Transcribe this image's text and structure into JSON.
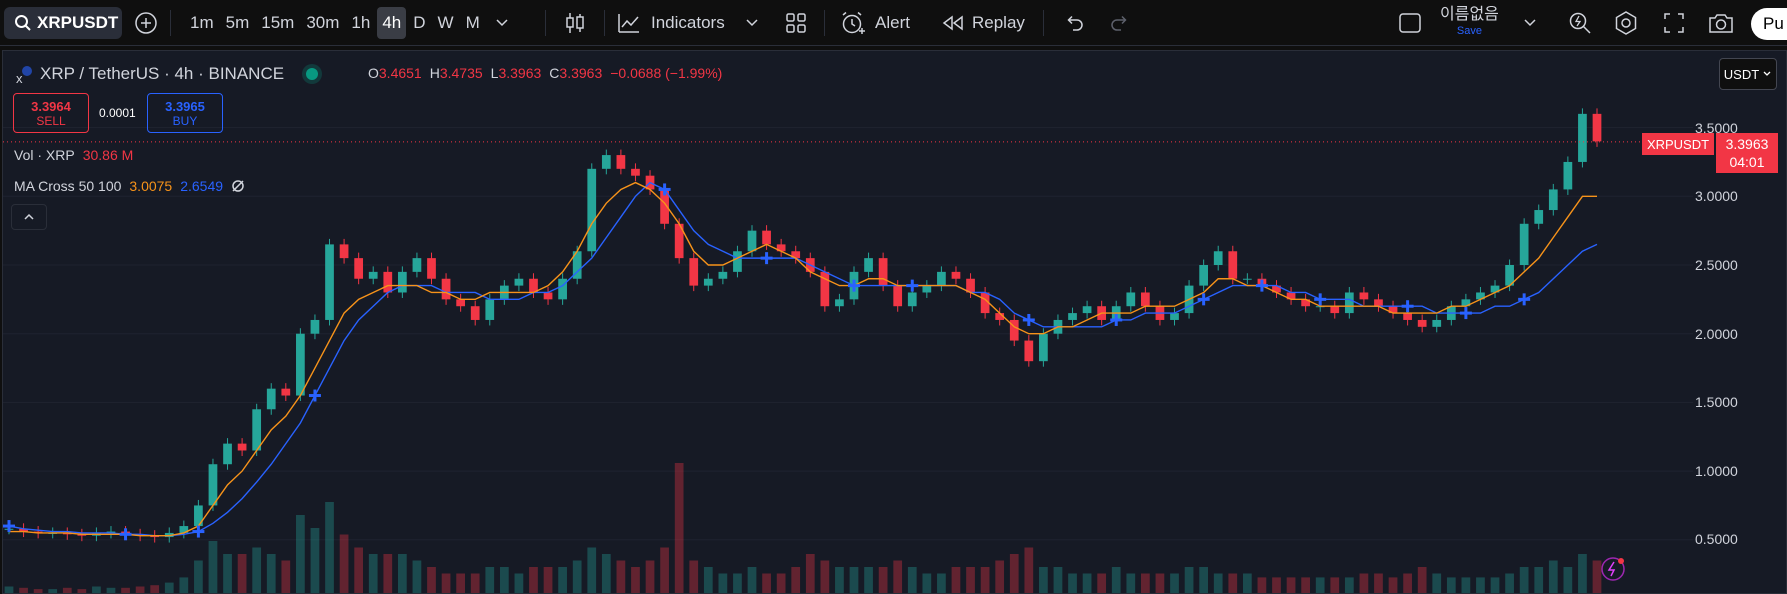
{
  "toolbar": {
    "symbol": "XRPUSDT",
    "timeframes": [
      "1m",
      "5m",
      "15m",
      "30m",
      "1h",
      "4h",
      "D",
      "W",
      "M"
    ],
    "active_timeframe": "4h",
    "indicators_label": "Indicators",
    "alert_label": "Alert",
    "replay_label": "Replay",
    "layout_name": "이름없음",
    "save_label": "Save",
    "publish_label": "Pu"
  },
  "legend": {
    "title": "XRP / TetherUS · 4h · BINANCE",
    "open_key": "O",
    "open": "3.4651",
    "high_key": "H",
    "high": "3.4735",
    "low_key": "L",
    "low": "3.3963",
    "close_key": "C",
    "close": "3.3963",
    "change": "−0.0688 (−1.99%)"
  },
  "trade": {
    "sell_price": "3.3964",
    "sell_label": "SELL",
    "spread": "0.0001",
    "buy_price": "3.3965",
    "buy_label": "BUY"
  },
  "indicators": {
    "vol_label": "Vol · XRP",
    "vol_value": "30.86 M",
    "ma_label": "MA Cross 50 100",
    "ma_fast": "3.0075",
    "ma_slow": "2.6549"
  },
  "currency": "USDT",
  "price_scale": [
    "3.5000",
    "3.0000",
    "2.5000",
    "2.0000",
    "1.5000",
    "1.0000",
    "0.5000"
  ],
  "last_price": {
    "symbol": "XRPUSDT",
    "price": "3.3963",
    "countdown": "04:01"
  },
  "colors": {
    "up": "#26a69a",
    "down": "#f23645",
    "ma_fast": "#f7931a",
    "ma_slow": "#2962ff",
    "cross": "#2962ff",
    "bg": "#161a25"
  },
  "chart_data": {
    "type": "line",
    "title": "XRP / TetherUS · 4h · BINANCE",
    "ylim": [
      0.3,
      3.7
    ],
    "series": [
      {
        "name": "XRP",
        "values": [
          0.58,
          0.56,
          0.55,
          0.55,
          0.54,
          0.53,
          0.55,
          0.56,
          0.54,
          0.53,
          0.52,
          0.55,
          0.6,
          0.75,
          1.05,
          1.2,
          1.15,
          1.45,
          1.6,
          1.55,
          2.0,
          2.1,
          2.65,
          2.55,
          2.4,
          2.45,
          2.3,
          2.45,
          2.55,
          2.4,
          2.25,
          2.2,
          2.1,
          2.25,
          2.35,
          2.4,
          2.3,
          2.25,
          2.4,
          2.6,
          3.2,
          3.3,
          3.2,
          3.15,
          3.05,
          2.8,
          2.55,
          2.35,
          2.4,
          2.45,
          2.6,
          2.75,
          2.65,
          2.6,
          2.55,
          2.45,
          2.2,
          2.25,
          2.45,
          2.55,
          2.35,
          2.2,
          2.3,
          2.35,
          2.45,
          2.4,
          2.3,
          2.15,
          2.1,
          1.95,
          1.8,
          2.0,
          2.1,
          2.15,
          2.2,
          2.1,
          2.2,
          2.3,
          2.2,
          2.1,
          2.15,
          2.35,
          2.5,
          2.6,
          2.4,
          2.4,
          2.35,
          2.3,
          2.25,
          2.2,
          2.2,
          2.15,
          2.3,
          2.25,
          2.2,
          2.15,
          2.1,
          2.05,
          2.1,
          2.2,
          2.25,
          2.3,
          2.35,
          2.5,
          2.8,
          2.9,
          3.05,
          3.25,
          3.6,
          3.4
        ]
      },
      {
        "name": "MA 50",
        "values": [
          0.56,
          0.56,
          0.55,
          0.55,
          0.55,
          0.54,
          0.54,
          0.54,
          0.54,
          0.53,
          0.53,
          0.53,
          0.55,
          0.6,
          0.75,
          0.9,
          1.0,
          1.15,
          1.3,
          1.4,
          1.55,
          1.75,
          1.95,
          2.15,
          2.25,
          2.3,
          2.35,
          2.35,
          2.35,
          2.3,
          2.3,
          2.25,
          2.25,
          2.3,
          2.3,
          2.3,
          2.3,
          2.35,
          2.45,
          2.6,
          2.8,
          2.95,
          3.05,
          3.1,
          3.05,
          2.95,
          2.8,
          2.6,
          2.5,
          2.5,
          2.55,
          2.6,
          2.65,
          2.6,
          2.55,
          2.45,
          2.4,
          2.35,
          2.35,
          2.4,
          2.4,
          2.35,
          2.35,
          2.35,
          2.35,
          2.35,
          2.3,
          2.25,
          2.15,
          2.05,
          2.0,
          2.0,
          2.05,
          2.05,
          2.1,
          2.15,
          2.15,
          2.15,
          2.2,
          2.2,
          2.2,
          2.25,
          2.3,
          2.4,
          2.4,
          2.35,
          2.35,
          2.3,
          2.25,
          2.25,
          2.2,
          2.2,
          2.2,
          2.2,
          2.2,
          2.15,
          2.15,
          2.15,
          2.15,
          2.2,
          2.2,
          2.25,
          2.3,
          2.35,
          2.45,
          2.55,
          2.7,
          2.85,
          3.0,
          3.0
        ]
      },
      {
        "name": "MA 100",
        "values": [
          0.6,
          0.58,
          0.57,
          0.56,
          0.56,
          0.55,
          0.55,
          0.55,
          0.54,
          0.54,
          0.53,
          0.53,
          0.54,
          0.56,
          0.62,
          0.7,
          0.8,
          0.92,
          1.05,
          1.2,
          1.35,
          1.55,
          1.75,
          1.95,
          2.1,
          2.2,
          2.3,
          2.35,
          2.35,
          2.35,
          2.3,
          2.3,
          2.3,
          2.25,
          2.25,
          2.25,
          2.3,
          2.3,
          2.35,
          2.45,
          2.55,
          2.7,
          2.85,
          3.0,
          3.1,
          3.05,
          2.9,
          2.75,
          2.65,
          2.6,
          2.55,
          2.55,
          2.55,
          2.55,
          2.55,
          2.5,
          2.45,
          2.4,
          2.35,
          2.35,
          2.35,
          2.35,
          2.35,
          2.35,
          2.35,
          2.35,
          2.3,
          2.3,
          2.25,
          2.15,
          2.1,
          2.05,
          2.05,
          2.05,
          2.05,
          2.05,
          2.1,
          2.1,
          2.15,
          2.15,
          2.15,
          2.2,
          2.25,
          2.3,
          2.35,
          2.35,
          2.35,
          2.35,
          2.3,
          2.3,
          2.25,
          2.25,
          2.25,
          2.2,
          2.2,
          2.2,
          2.2,
          2.2,
          2.15,
          2.15,
          2.15,
          2.15,
          2.2,
          2.2,
          2.25,
          2.3,
          2.4,
          2.5,
          2.6,
          2.65
        ]
      }
    ],
    "cross_indices": [
      0,
      8,
      13,
      21,
      45,
      52,
      58,
      62,
      70,
      76,
      82,
      86,
      90,
      96,
      100,
      104
    ],
    "volume_relative": [
      0.05,
      0.04,
      0.03,
      0.03,
      0.04,
      0.03,
      0.05,
      0.04,
      0.04,
      0.05,
      0.06,
      0.08,
      0.12,
      0.25,
      0.4,
      0.3,
      0.3,
      0.35,
      0.3,
      0.25,
      0.6,
      0.5,
      0.7,
      0.45,
      0.35,
      0.3,
      0.3,
      0.3,
      0.25,
      0.2,
      0.15,
      0.15,
      0.15,
      0.2,
      0.2,
      0.15,
      0.2,
      0.2,
      0.2,
      0.25,
      0.35,
      0.3,
      0.25,
      0.2,
      0.25,
      0.35,
      1.0,
      0.25,
      0.2,
      0.15,
      0.15,
      0.2,
      0.15,
      0.15,
      0.2,
      0.3,
      0.25,
      0.2,
      0.2,
      0.2,
      0.2,
      0.25,
      0.2,
      0.15,
      0.15,
      0.2,
      0.2,
      0.2,
      0.25,
      0.3,
      0.35,
      0.2,
      0.2,
      0.15,
      0.15,
      0.15,
      0.2,
      0.15,
      0.15,
      0.15,
      0.15,
      0.2,
      0.2,
      0.15,
      0.15,
      0.15,
      0.12,
      0.12,
      0.12,
      0.12,
      0.12,
      0.12,
      0.12,
      0.15,
      0.15,
      0.12,
      0.15,
      0.2,
      0.15,
      0.12,
      0.12,
      0.12,
      0.12,
      0.15,
      0.2,
      0.2,
      0.25,
      0.2,
      0.3,
      0.25
    ]
  }
}
